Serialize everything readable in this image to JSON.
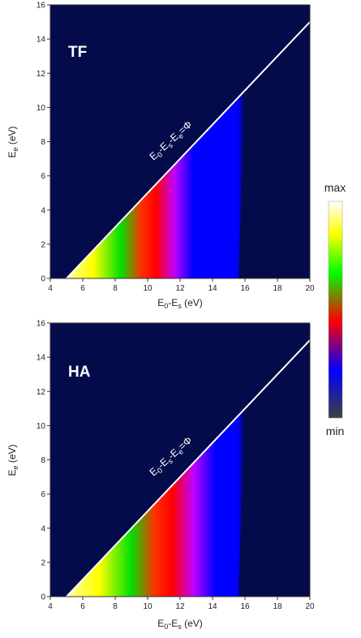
{
  "chart_data": [
    {
      "type": "heatmap",
      "panel_label": "TF",
      "xlabel": "E0-Es (eV)",
      "xlabel_main": "E",
      "xlabel_sub1": "0",
      "xlabel_mid": "-E",
      "xlabel_sub2": "s",
      "xlabel_unit": " (eV)",
      "ylabel": "Ee (eV)",
      "ylabel_main": "E",
      "ylabel_sub": "e",
      "ylabel_unit": " (eV)",
      "xlim": [
        4,
        20
      ],
      "ylim": [
        0,
        16
      ],
      "xticks": [
        4,
        6,
        8,
        10,
        12,
        14,
        16,
        18,
        20
      ],
      "yticks": [
        0,
        2,
        4,
        6,
        8,
        10,
        12,
        14,
        16
      ],
      "threshold_line": {
        "x": [
          5,
          20
        ],
        "y": [
          0,
          15
        ],
        "label": "E0-Es-Ee=Φ"
      },
      "intensity_fade_x": [
        10.5,
        16.0
      ],
      "background_color": "#030b4a"
    },
    {
      "type": "heatmap",
      "panel_label": "HA",
      "xlabel": "E0-Es (eV)",
      "xlabel_main": "E",
      "xlabel_sub1": "0",
      "xlabel_mid": "-E",
      "xlabel_sub2": "s",
      "xlabel_unit": " (eV)",
      "ylabel": "Ee (eV)",
      "ylabel_main": "E",
      "ylabel_sub": "e",
      "ylabel_unit": " (eV)",
      "xlim": [
        4,
        20
      ],
      "ylim": [
        0,
        16
      ],
      "xticks": [
        4,
        6,
        8,
        10,
        12,
        14,
        16,
        18,
        20
      ],
      "yticks": [
        0,
        2,
        4,
        6,
        8,
        10,
        12,
        14,
        16
      ],
      "threshold_line": {
        "x": [
          5,
          20
        ],
        "y": [
          0,
          15
        ],
        "label": "E0-Es-Ee=Φ"
      },
      "intensity_fade_x": [
        8.0,
        16.0
      ],
      "background_color": "#030b4a"
    }
  ],
  "colorbar": {
    "max_label": "max",
    "min_label": "min",
    "stops": [
      "#ffffff",
      "#ffff00",
      "#00ff00",
      "#ff0000",
      "#0000ff",
      "#404040"
    ]
  },
  "line_label_parts": {
    "e0": "E",
    "s0": "0",
    "es": "-E",
    "ss": "s",
    "ee": "-E",
    "se": "e",
    "eq": "=Φ"
  }
}
